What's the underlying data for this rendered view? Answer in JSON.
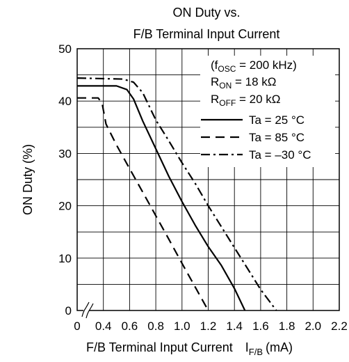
{
  "chart_data": {
    "type": "line",
    "title_line1": "ON Duty vs.",
    "title_line2": "F/B Terminal Input Current",
    "ylabel": "ON Duty (%)",
    "xlabel_main": "F/B Terminal Input Current",
    "xlabel_sym": "I",
    "xlabel_sub": "F/B",
    "xlabel_unit": "(mA)",
    "xlim": [
      0.2,
      2.2
    ],
    "ylim": [
      0,
      50
    ],
    "x_ticks": [
      "0.4",
      "0.6",
      "0.8",
      "1.0",
      "1.2",
      "1.4",
      "1.6",
      "1.8",
      "2.0",
      "2.2"
    ],
    "x_zero_label": "0",
    "y_ticks": [
      "0",
      "10",
      "20",
      "30",
      "40",
      "50"
    ],
    "grid": true,
    "axis_break": true,
    "conditions": {
      "fosc_pre": "(f",
      "fosc_sub": "OSC",
      "fosc_post": " = 200 kHz)",
      "ron_pre": "R",
      "ron_sub": "ON",
      "ron_post": " = 18 kΩ",
      "roff_pre": "R",
      "roff_sub": "OFF",
      "roff_post": " = 20 kΩ"
    },
    "series": [
      {
        "name": "Ta = 25 °C",
        "dash": "solid",
        "x": [
          0.2,
          0.5,
          0.58,
          0.63,
          0.7,
          0.8,
          0.9,
          1.0,
          1.1,
          1.2,
          1.3,
          1.4,
          1.48
        ],
        "y": [
          42.9,
          42.9,
          42.2,
          40.4,
          36.2,
          30.9,
          25.6,
          20.8,
          16.3,
          12.2,
          8.6,
          4.2,
          0
        ]
      },
      {
        "name": "Ta = 85 °C",
        "dash": "dashed",
        "x": [
          0.2,
          0.36,
          0.39,
          0.42,
          0.5,
          0.6,
          0.7,
          0.8,
          0.9,
          1.0,
          1.1,
          1.2
        ],
        "y": [
          40.6,
          40.6,
          39.6,
          35.6,
          31.6,
          27.1,
          22.6,
          18.1,
          13.6,
          9.0,
          4.5,
          0
        ]
      },
      {
        "name": "Ta = –30 °C",
        "dash": "dashdot",
        "x": [
          0.2,
          0.55,
          0.63,
          0.7,
          0.8,
          0.9,
          1.0,
          1.1,
          1.2,
          1.3,
          1.4,
          1.5,
          1.6,
          1.72
        ],
        "y": [
          44.4,
          44.2,
          43.6,
          41.6,
          36.4,
          32.4,
          28.2,
          24.3,
          20.0,
          16.0,
          12.0,
          8.0,
          4.0,
          0
        ]
      }
    ]
  }
}
